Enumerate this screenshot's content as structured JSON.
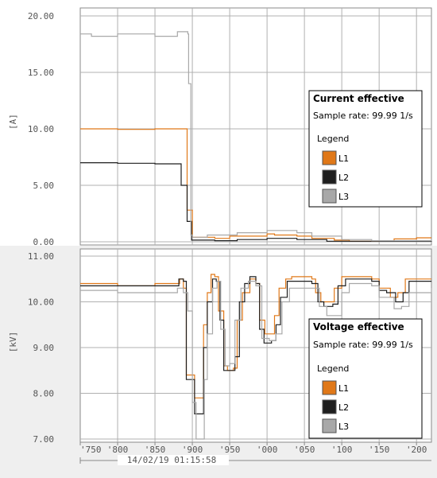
{
  "chart_data": [
    {
      "type": "line",
      "title": "Current effective",
      "ylabel": "[A]",
      "ylim": [
        0,
        20
      ],
      "yticks": [
        "20.00",
        "15.00",
        "10.00",
        "5.00",
        "0.00"
      ],
      "xlim": [
        750,
        220
      ],
      "info": {
        "title": "Current effective",
        "sample_rate": "Sample rate: 99.99 1/s",
        "legend_title": "Legend"
      },
      "series": [
        {
          "name": "L1",
          "color": "#e07818",
          "points": [
            [
              750,
              10.0
            ],
            [
              790,
              10.0
            ],
            [
              800,
              9.95
            ],
            [
              840,
              9.95
            ],
            [
              850,
              10.0
            ],
            [
              893,
              10.0
            ],
            [
              893,
              2.8
            ],
            [
              898,
              2.8
            ],
            [
              900,
              0.4
            ],
            [
              930,
              0.3
            ],
            [
              950,
              0.5
            ],
            [
              1000,
              0.7
            ],
            [
              1010,
              0.6
            ],
            [
              1040,
              0.5
            ],
            [
              1060,
              0.3
            ],
            [
              1090,
              0.15
            ],
            [
              1110,
              0.05
            ],
            [
              1150,
              0.1
            ],
            [
              1170,
              0.25
            ],
            [
              1200,
              0.35
            ],
            [
              1220,
              0.35
            ]
          ]
        },
        {
          "name": "L2",
          "color": "#1e1e1e",
          "points": [
            [
              750,
              7.0
            ],
            [
              790,
              7.0
            ],
            [
              800,
              6.95
            ],
            [
              840,
              6.95
            ],
            [
              850,
              6.9
            ],
            [
              880,
              6.9
            ],
            [
              885,
              5.0
            ],
            [
              892,
              5.0
            ],
            [
              893,
              1.8
            ],
            [
              897,
              1.8
            ],
            [
              899,
              0.15
            ],
            [
              930,
              0.1
            ],
            [
              960,
              0.2
            ],
            [
              1000,
              0.3
            ],
            [
              1040,
              0.2
            ],
            [
              1080,
              0.05
            ],
            [
              1140,
              0.05
            ],
            [
              1220,
              0.1
            ]
          ]
        },
        {
          "name": "L3",
          "color": "#a8a8a8",
          "points": [
            [
              750,
              18.4
            ],
            [
              765,
              18.2
            ],
            [
              790,
              18.2
            ],
            [
              800,
              18.4
            ],
            [
              840,
              18.4
            ],
            [
              850,
              18.2
            ],
            [
              878,
              18.2
            ],
            [
              880,
              18.6
            ],
            [
              894,
              18.4
            ],
            [
              895,
              14.0
            ],
            [
              897,
              14.0
            ],
            [
              898,
              0.6
            ],
            [
              900,
              0.4
            ],
            [
              920,
              0.6
            ],
            [
              960,
              0.8
            ],
            [
              1000,
              1.0
            ],
            [
              1040,
              0.8
            ],
            [
              1060,
              0.5
            ],
            [
              1100,
              0.2
            ],
            [
              1140,
              0.1
            ],
            [
              1220,
              0.2
            ]
          ]
        }
      ]
    },
    {
      "type": "line",
      "title": "Voltage effective",
      "ylabel": "[kV]",
      "ylim": [
        7,
        11
      ],
      "yticks": [
        "11.00",
        "10.00",
        "9.00",
        "8.00",
        "7.00"
      ],
      "xticks": [
        "'750",
        "'800",
        "'850",
        "'900",
        "'950",
        "'000",
        "'050",
        "'100",
        "'150",
        "'200"
      ],
      "time_label": "14/02/19 01:15:58",
      "info": {
        "title": "Voltage effective",
        "sample_rate": "Sample rate: 99.99 1/s",
        "legend_title": "Legend"
      },
      "series": [
        {
          "name": "L1",
          "color": "#e07818",
          "points": [
            [
              750,
              10.4
            ],
            [
              790,
              10.4
            ],
            [
              800,
              10.35
            ],
            [
              850,
              10.4
            ],
            [
              880,
              10.4
            ],
            [
              883,
              10.5
            ],
            [
              888,
              10.3
            ],
            [
              892,
              8.4
            ],
            [
              899,
              8.4
            ],
            [
              903,
              7.9
            ],
            [
              912,
              7.9
            ],
            [
              915,
              9.5
            ],
            [
              920,
              10.2
            ],
            [
              925,
              10.6
            ],
            [
              930,
              10.55
            ],
            [
              935,
              9.8
            ],
            [
              942,
              8.6
            ],
            [
              947,
              8.5
            ],
            [
              955,
              8.55
            ],
            [
              960,
              9.6
            ],
            [
              967,
              10.2
            ],
            [
              977,
              10.5
            ],
            [
              985,
              10.4
            ],
            [
              990,
              9.6
            ],
            [
              997,
              9.3
            ],
            [
              1006,
              9.3
            ],
            [
              1010,
              9.7
            ],
            [
              1016,
              10.3
            ],
            [
              1025,
              10.5
            ],
            [
              1033,
              10.55
            ],
            [
              1060,
              10.5
            ],
            [
              1065,
              10.2
            ],
            [
              1072,
              10.0
            ],
            [
              1085,
              10.0
            ],
            [
              1090,
              10.3
            ],
            [
              1100,
              10.55
            ],
            [
              1140,
              10.5
            ],
            [
              1150,
              10.3
            ],
            [
              1165,
              10.1
            ],
            [
              1175,
              10.2
            ],
            [
              1185,
              10.5
            ],
            [
              1220,
              10.5
            ]
          ]
        },
        {
          "name": "L2",
          "color": "#1e1e1e",
          "points": [
            [
              750,
              10.35
            ],
            [
              800,
              10.35
            ],
            [
              850,
              10.35
            ],
            [
              880,
              10.35
            ],
            [
              882,
              10.5
            ],
            [
              888,
              10.45
            ],
            [
              892,
              8.3
            ],
            [
              900,
              8.3
            ],
            [
              903,
              7.55
            ],
            [
              912,
              7.55
            ],
            [
              915,
              9.0
            ],
            [
              920,
              10.0
            ],
            [
              927,
              10.5
            ],
            [
              932,
              10.45
            ],
            [
              937,
              9.6
            ],
            [
              942,
              8.5
            ],
            [
              950,
              8.5
            ],
            [
              957,
              8.8
            ],
            [
              963,
              10.0
            ],
            [
              970,
              10.4
            ],
            [
              977,
              10.55
            ],
            [
              985,
              10.4
            ],
            [
              990,
              9.4
            ],
            [
              996,
              9.1
            ],
            [
              1006,
              9.15
            ],
            [
              1012,
              9.5
            ],
            [
              1018,
              10.1
            ],
            [
              1027,
              10.45
            ],
            [
              1040,
              10.45
            ],
            [
              1060,
              10.4
            ],
            [
              1068,
              10.0
            ],
            [
              1076,
              9.9
            ],
            [
              1088,
              9.95
            ],
            [
              1095,
              10.35
            ],
            [
              1105,
              10.5
            ],
            [
              1140,
              10.45
            ],
            [
              1150,
              10.25
            ],
            [
              1160,
              10.2
            ],
            [
              1172,
              10.0
            ],
            [
              1182,
              10.2
            ],
            [
              1190,
              10.45
            ],
            [
              1220,
              10.45
            ]
          ]
        },
        {
          "name": "L3",
          "color": "#a8a8a8",
          "points": [
            [
              750,
              10.25
            ],
            [
              790,
              10.25
            ],
            [
              800,
              10.2
            ],
            [
              850,
              10.2
            ],
            [
              870,
              10.2
            ],
            [
              880,
              10.3
            ],
            [
              888,
              10.2
            ],
            [
              894,
              9.8
            ],
            [
              900,
              7.8
            ],
            [
              905,
              7.0
            ],
            [
              913,
              7.0
            ],
            [
              916,
              8.3
            ],
            [
              920,
              9.3
            ],
            [
              927,
              10.3
            ],
            [
              933,
              10.45
            ],
            [
              938,
              9.4
            ],
            [
              944,
              8.6
            ],
            [
              950,
              8.65
            ],
            [
              957,
              9.6
            ],
            [
              965,
              10.3
            ],
            [
              975,
              10.45
            ],
            [
              985,
              10.35
            ],
            [
              993,
              9.2
            ],
            [
              1003,
              9.15
            ],
            [
              1012,
              9.3
            ],
            [
              1020,
              10.0
            ],
            [
              1030,
              10.3
            ],
            [
              1060,
              10.3
            ],
            [
              1070,
              9.9
            ],
            [
              1080,
              9.7
            ],
            [
              1090,
              9.7
            ],
            [
              1100,
              10.2
            ],
            [
              1110,
              10.4
            ],
            [
              1140,
              10.35
            ],
            [
              1150,
              10.1
            ],
            [
              1170,
              9.85
            ],
            [
              1180,
              9.9
            ],
            [
              1190,
              10.2
            ],
            [
              1220,
              10.3
            ]
          ]
        }
      ]
    }
  ]
}
